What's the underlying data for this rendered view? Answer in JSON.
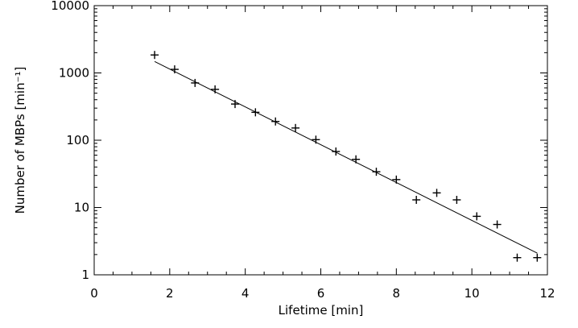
{
  "chart_data": {
    "type": "scatter",
    "xlabel": "Lifetime [min]",
    "ylabel": "Number of MBPs [min⁻¹]",
    "xlim": [
      0,
      12
    ],
    "ylim": [
      1,
      10000
    ],
    "yscale": "log",
    "grid": false,
    "x_ticks": [
      "0",
      "2",
      "4",
      "6",
      "8",
      "10",
      "12"
    ],
    "y_ticks": [
      "1",
      "10",
      "100",
      "1000",
      "10000"
    ],
    "points": {
      "marker": "plus",
      "x": [
        1.6,
        2.13,
        2.67,
        3.2,
        3.73,
        4.27,
        4.8,
        5.33,
        5.87,
        6.4,
        6.93,
        7.47,
        8.0,
        8.53,
        9.07,
        9.6,
        10.13,
        10.67,
        11.2,
        11.73
      ],
      "y": [
        1850,
        1130,
        710,
        570,
        345,
        260,
        190,
        152,
        102,
        68,
        52,
        34,
        26,
        13,
        16.5,
        13,
        7.4,
        5.6,
        1.8,
        1.8
      ]
    },
    "fit_line": {
      "x": [
        1.6,
        11.73
      ],
      "y": [
        1480,
        2.1
      ]
    }
  }
}
